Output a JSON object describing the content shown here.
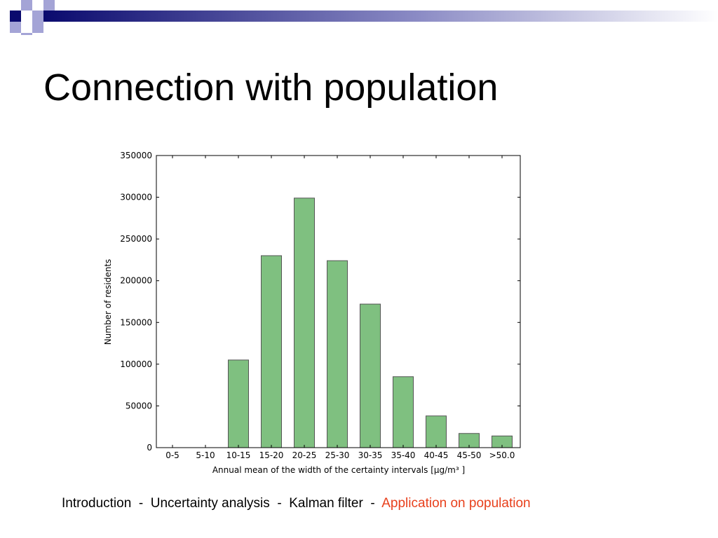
{
  "slide": {
    "title": "Connection with population"
  },
  "footer": {
    "items": [
      "Introduction",
      "Uncertainty analysis",
      "Kalman filter",
      "Application on population"
    ],
    "separator": "-",
    "active_index": 3,
    "active_color": "#e8401c"
  },
  "colors": {
    "bar_fill": "#7fc080",
    "bar_stroke": "#555555",
    "deco_dark": "#0a0a6e",
    "deco_light": "#a4a4d6"
  },
  "chart_data": {
    "type": "bar",
    "categories": [
      "0-5",
      "5-10",
      "10-15",
      "15-20",
      "20-25",
      "25-30",
      "30-35",
      "35-40",
      "40-45",
      "45-50",
      ">50.0"
    ],
    "values": [
      0,
      0,
      105000,
      230000,
      299000,
      224000,
      172000,
      85000,
      38000,
      17000,
      14000
    ],
    "xlabel": "Annual mean of the width of the certainty intervals [μg/m³ ]",
    "ylabel": "Number of residents",
    "ylim": [
      0,
      350000
    ],
    "yticks": [
      0,
      50000,
      100000,
      150000,
      200000,
      250000,
      300000,
      350000
    ],
    "grid": false,
    "legend": "none"
  }
}
